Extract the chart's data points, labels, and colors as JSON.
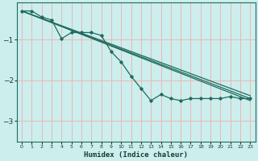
{
  "xlabel": "Humidex (Indice chaleur)",
  "background_color": "#cceeed",
  "grid_color": "#e8b8b8",
  "line_color": "#1e6b5e",
  "x_ticks": [
    0,
    1,
    2,
    3,
    4,
    5,
    6,
    7,
    8,
    9,
    10,
    11,
    12,
    13,
    14,
    15,
    16,
    17,
    18,
    19,
    20,
    21,
    22,
    23
  ],
  "ylim": [
    -3.5,
    -0.1
  ],
  "xlim": [
    -0.5,
    23.5
  ],
  "yticks": [
    -3,
    -2,
    -1
  ],
  "series1_x": [
    0,
    1,
    2,
    3,
    4,
    5,
    6,
    7,
    8,
    9,
    10,
    11,
    12,
    13,
    14,
    15,
    16,
    17,
    18,
    19,
    20,
    21,
    22,
    23
  ],
  "series1_y": [
    -0.3,
    -0.3,
    -0.45,
    -0.52,
    -0.98,
    -0.83,
    -0.83,
    -0.83,
    -0.9,
    -1.3,
    -1.55,
    -1.9,
    -2.2,
    -2.5,
    -2.35,
    -2.45,
    -2.5,
    -2.45,
    -2.45,
    -2.45,
    -2.45,
    -2.4,
    -2.45,
    -2.45
  ],
  "line1_x": [
    0,
    23
  ],
  "line1_y": [
    -0.3,
    -2.5
  ],
  "line2_x": [
    0,
    23
  ],
  "line2_y": [
    -0.3,
    -2.45
  ],
  "line3_x": [
    0,
    23
  ],
  "line3_y": [
    -0.3,
    -2.38
  ]
}
